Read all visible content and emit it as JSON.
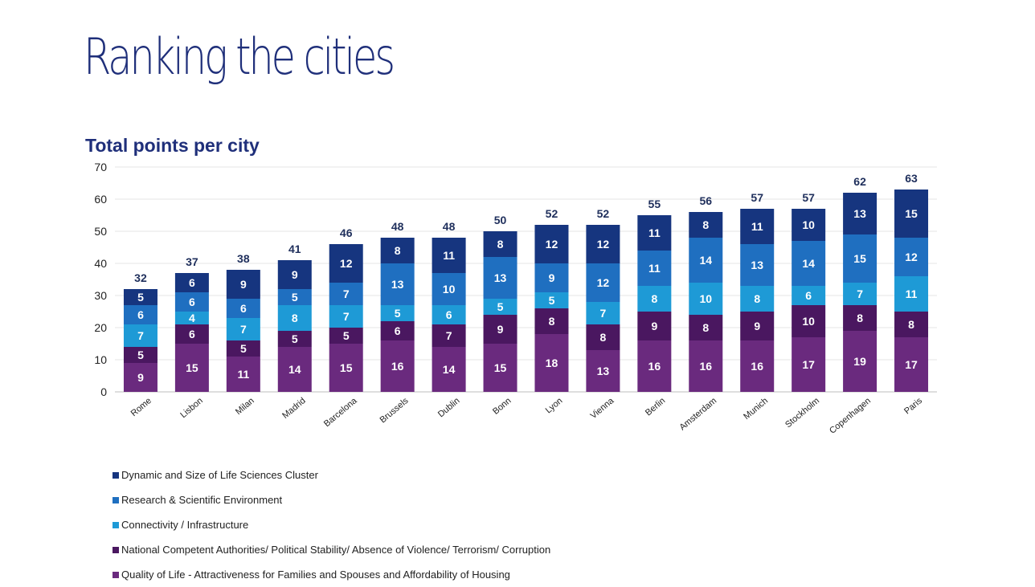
{
  "page": {
    "title": "Ranking the cities"
  },
  "chart_data": {
    "type": "bar",
    "stacked": true,
    "title": "Total points per city",
    "xlabel": "",
    "ylabel": "",
    "ylim": [
      0,
      70
    ],
    "yticks": [
      0,
      10,
      20,
      30,
      40,
      50,
      60,
      70
    ],
    "grid": true,
    "legend_position": "bottom",
    "categories": [
      "Rome",
      "Lisbon",
      "Milan",
      "Madrid",
      "Barcelona",
      "Brussels",
      "Dublin",
      "Bonn",
      "Lyon",
      "Vienna",
      "Berlin",
      "Amsterdam",
      "Munich",
      "Stockholm",
      "Copenhagen",
      "Paris"
    ],
    "totals": [
      32,
      37,
      38,
      41,
      46,
      48,
      48,
      50,
      52,
      52,
      55,
      56,
      57,
      57,
      62,
      63
    ],
    "series": [
      {
        "name": "Quality of Life - Attractiveness for Families and Spouses and Affordability of Housing",
        "color": "#6a2a7e",
        "values": [
          9,
          15,
          11,
          14,
          15,
          16,
          14,
          15,
          18,
          13,
          16,
          16,
          16,
          17,
          19,
          17
        ]
      },
      {
        "name": "National Competent Authorities/ Political Stability/ Absence of Violence/ Terrorism/ Corruption",
        "color": "#4a1760",
        "values": [
          5,
          6,
          5,
          5,
          5,
          6,
          7,
          9,
          8,
          8,
          9,
          8,
          9,
          10,
          8,
          8
        ]
      },
      {
        "name": "Connectivity / Infrastructure",
        "color": "#1e9ad6",
        "values": [
          7,
          4,
          7,
          8,
          7,
          5,
          6,
          5,
          5,
          7,
          8,
          10,
          8,
          6,
          7,
          11
        ]
      },
      {
        "name": "Research & Scientific Environment",
        "color": "#1f6fc0",
        "values": [
          6,
          6,
          6,
          5,
          7,
          13,
          10,
          13,
          9,
          12,
          11,
          14,
          13,
          14,
          15,
          12
        ]
      },
      {
        "name": "Dynamic and Size of Life Sciences Cluster",
        "color": "#16357f",
        "values": [
          5,
          6,
          9,
          9,
          12,
          8,
          11,
          8,
          12,
          12,
          11,
          8,
          11,
          10,
          13,
          15
        ]
      }
    ],
    "legend_order": [
      "Dynamic and Size of Life Sciences Cluster",
      "Research & Scientific Environment",
      "Connectivity / Infrastructure",
      "National Competent Authorities/ Political Stability/ Absence of Violence/ Terrorism/ Corruption",
      "Quality of Life - Attractiveness for Families and Spouses and Affordability of Housing"
    ]
  }
}
